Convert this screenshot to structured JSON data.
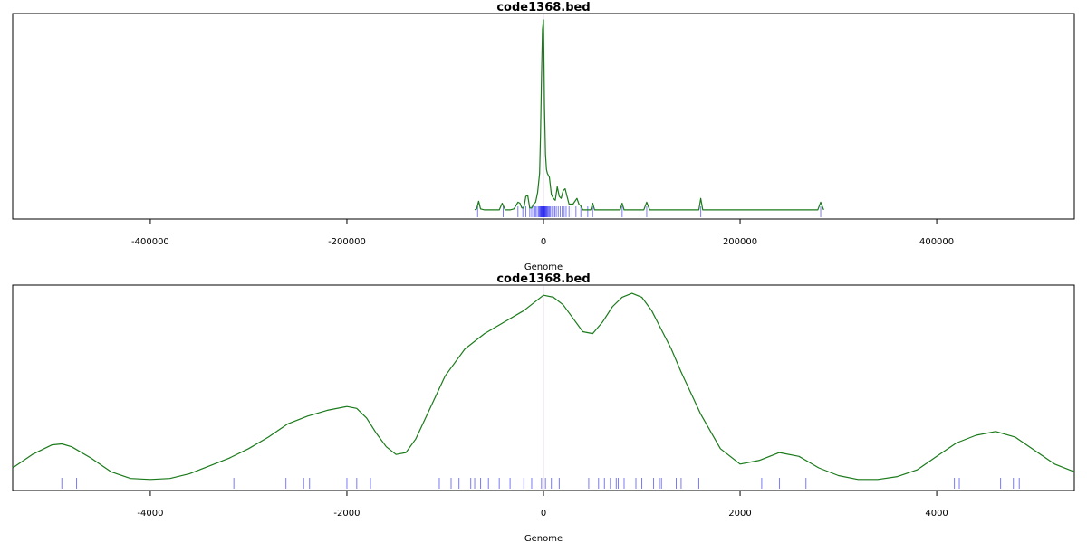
{
  "colors": {
    "density_line": "#1a7a1a",
    "rug": "#2222ee",
    "zero_line": "#e8d8e8",
    "axis": "#000000"
  },
  "chart_data": [
    {
      "type": "line",
      "title": "code1368.bed",
      "xlabel": "Genome",
      "ylabel": "",
      "xlim": [
        -540000,
        540000
      ],
      "ylim": [
        0,
        1
      ],
      "x_ticks": [
        -400000,
        -200000,
        0,
        200000,
        400000
      ],
      "tick_labels": [
        "-400000",
        "-200000",
        "0",
        "200000",
        "400000"
      ],
      "series": [
        {
          "x": [
            -70000,
            -68000,
            -66000,
            -64000,
            -60000,
            -50000,
            -45000,
            -42000,
            -39000,
            -34000,
            -30000,
            -26000,
            -24000,
            -22000,
            -20000,
            -18000,
            -16000,
            -14000,
            -12000,
            -10000,
            -8000,
            -6000,
            -4000,
            -3000,
            -2000,
            -1000,
            0,
            1000,
            2000,
            3000,
            4000,
            6000,
            8000,
            10000,
            12000,
            14000,
            16000,
            18000,
            20000,
            22000,
            24000,
            26000,
            30000,
            34000,
            36000,
            38000,
            40000,
            44000,
            48000,
            50000,
            52000,
            56000,
            75000,
            78000,
            80000,
            82000,
            85000,
            100000,
            102000,
            105000,
            108000,
            111000,
            150000,
            155000,
            158000,
            160000,
            162000,
            165000,
            200000,
            275000,
            279000,
            282000,
            285000
          ],
          "y": [
            0.01,
            0.015,
            0.055,
            0.015,
            0.01,
            0.01,
            0.01,
            0.045,
            0.01,
            0.01,
            0.015,
            0.05,
            0.045,
            0.02,
            0.02,
            0.08,
            0.085,
            0.02,
            0.02,
            0.04,
            0.05,
            0.1,
            0.2,
            0.4,
            0.7,
            0.95,
            1.0,
            0.55,
            0.3,
            0.22,
            0.2,
            0.18,
            0.09,
            0.07,
            0.06,
            0.13,
            0.08,
            0.07,
            0.11,
            0.12,
            0.08,
            0.04,
            0.04,
            0.07,
            0.04,
            0.03,
            0.01,
            0.01,
            0.01,
            0.045,
            0.01,
            0.01,
            0.01,
            0.01,
            0.045,
            0.01,
            0.01,
            0.01,
            0.01,
            0.05,
            0.01,
            0.01,
            0.01,
            0.01,
            0.01,
            0.07,
            0.01,
            0.01,
            0.01,
            0.01,
            0.01,
            0.05,
            0.01
          ]
        }
      ],
      "rug": [
        -67000,
        -41000,
        -26000,
        -21000,
        -18000,
        -14000,
        -12000,
        -10000,
        -9000,
        -8000,
        -6500,
        -5000,
        -4200,
        -3500,
        -3000,
        -2600,
        -2200,
        -1900,
        -1500,
        -1100,
        -800,
        -500,
        -200,
        0,
        300,
        600,
        900,
        1200,
        1600,
        2000,
        2500,
        3000,
        3500,
        4200,
        5000,
        6000,
        7000,
        8500,
        10000,
        11500,
        13000,
        15000,
        17000,
        19000,
        21000,
        23000,
        26000,
        29000,
        33000,
        38000,
        45000,
        50000,
        80000,
        105000,
        160000,
        282000
      ]
    },
    {
      "type": "line",
      "title": "code1368.bed",
      "xlabel": "Genome",
      "ylabel": "",
      "xlim": [
        -5400,
        5400
      ],
      "ylim": [
        0,
        1
      ],
      "x_ticks": [
        -4000,
        -2000,
        0,
        2000,
        4000
      ],
      "tick_labels": [
        "-4000",
        "-2000",
        "0",
        "2000",
        "4000"
      ],
      "series": [
        {
          "x": [
            -5400,
            -5200,
            -5000,
            -4900,
            -4800,
            -4600,
            -4400,
            -4200,
            -4000,
            -3800,
            -3600,
            -3400,
            -3200,
            -3000,
            -2800,
            -2600,
            -2400,
            -2200,
            -2000,
            -1900,
            -1800,
            -1700,
            -1600,
            -1500,
            -1400,
            -1300,
            -1200,
            -1000,
            -800,
            -600,
            -400,
            -200,
            0,
            100,
            200,
            300,
            400,
            500,
            600,
            700,
            800,
            900,
            1000,
            1100,
            1200,
            1300,
            1400,
            1600,
            1800,
            2000,
            2200,
            2400,
            2600,
            2800,
            3000,
            3200,
            3400,
            3600,
            3800,
            4000,
            4200,
            4400,
            4600,
            4800,
            5000,
            5200,
            5400
          ],
          "y": [
            0.08,
            0.15,
            0.2,
            0.205,
            0.19,
            0.13,
            0.06,
            0.025,
            0.02,
            0.025,
            0.05,
            0.09,
            0.13,
            0.18,
            0.24,
            0.31,
            0.35,
            0.38,
            0.4,
            0.39,
            0.34,
            0.26,
            0.19,
            0.15,
            0.16,
            0.23,
            0.34,
            0.56,
            0.7,
            0.78,
            0.84,
            0.9,
            0.98,
            0.97,
            0.93,
            0.86,
            0.79,
            0.78,
            0.84,
            0.92,
            0.97,
            0.99,
            0.97,
            0.9,
            0.8,
            0.7,
            0.58,
            0.36,
            0.18,
            0.1,
            0.12,
            0.16,
            0.14,
            0.08,
            0.04,
            0.02,
            0.02,
            0.035,
            0.07,
            0.14,
            0.21,
            0.25,
            0.27,
            0.24,
            0.17,
            0.1,
            0.06
          ]
        }
      ],
      "rug": [
        -4900,
        -4750,
        -3150,
        -2620,
        -2440,
        -2380,
        -2000,
        -1900,
        -1760,
        -1060,
        -940,
        -860,
        -740,
        -700,
        -640,
        -560,
        -450,
        -340,
        -200,
        -120,
        -20,
        20,
        80,
        160,
        460,
        560,
        620,
        680,
        740,
        760,
        820,
        940,
        1000,
        1120,
        1180,
        1200,
        1350,
        1400,
        1580,
        2220,
        2400,
        2670,
        4180,
        4230,
        4650,
        4780,
        4840
      ]
    }
  ]
}
